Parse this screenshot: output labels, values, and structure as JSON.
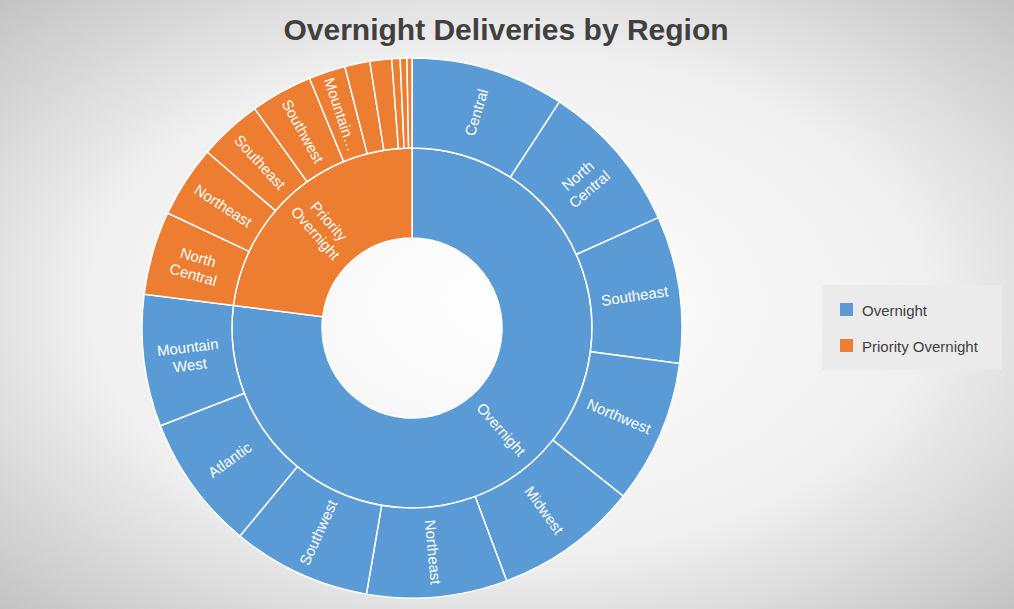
{
  "chart_data": {
    "type": "sunburst",
    "title": "Overnight Deliveries by Region",
    "legend": "right",
    "series": [
      {
        "name": "Overnight",
        "color": "#5b9bd5",
        "categories": [
          "Central",
          "North Central",
          "Southeast",
          "Northwest",
          "Midwest",
          "Northeast",
          "Southwest",
          "Atlantic",
          "Mountain West"
        ],
        "values": [
          9.2,
          9.1,
          8.8,
          8.6,
          8.6,
          8.4,
          8.3,
          8.1,
          7.9
        ]
      },
      {
        "name": "Priority Overnight",
        "color": "#ed7d31",
        "categories": [
          "North Central",
          "Northeast",
          "Southeast",
          "Southwest",
          "Mountain…",
          null,
          null,
          null,
          null,
          null
        ],
        "values": [
          5.0,
          4.3,
          3.8,
          3.7,
          2.2,
          1.5,
          1.3,
          0.5,
          0.4,
          0.3
        ]
      }
    ]
  }
}
